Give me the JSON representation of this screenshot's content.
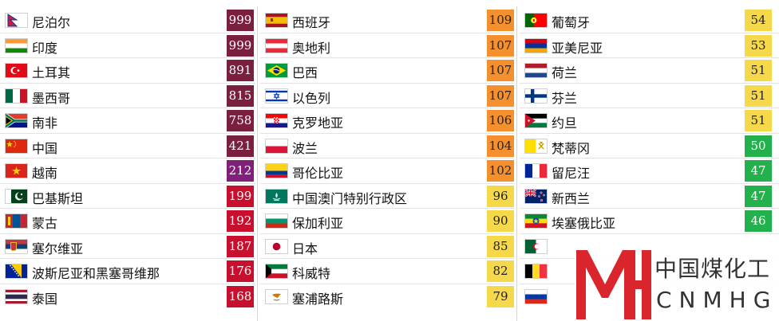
{
  "columns": [
    {
      "rows": [
        {
          "name": "尼泊尔",
          "value": "999",
          "tier": "t1",
          "flag": "nepal-flag-icon"
        },
        {
          "name": "印度",
          "value": "999",
          "tier": "t1",
          "flag": "india-flag-icon"
        },
        {
          "name": "土耳其",
          "value": "891",
          "tier": "t1",
          "flag": "turkey-flag-icon"
        },
        {
          "name": "墨西哥",
          "value": "815",
          "tier": "t1",
          "flag": "mexico-flag-icon"
        },
        {
          "name": "南非",
          "value": "758",
          "tier": "t1",
          "flag": "south-africa-flag-icon"
        },
        {
          "name": "中国",
          "value": "421",
          "tier": "t1",
          "flag": "china-flag-icon"
        },
        {
          "name": "越南",
          "value": "212",
          "tier": "t2",
          "flag": "vietnam-flag-icon"
        },
        {
          "name": "巴基斯坦",
          "value": "199",
          "tier": "t3",
          "flag": "pakistan-flag-icon"
        },
        {
          "name": "蒙古",
          "value": "192",
          "tier": "t3",
          "flag": "mongolia-flag-icon"
        },
        {
          "name": "塞尔维亚",
          "value": "187",
          "tier": "t3",
          "flag": "serbia-flag-icon"
        },
        {
          "name": "波斯尼亚和黑塞哥维那",
          "value": "176",
          "tier": "t3",
          "flag": "bosnia-flag-icon"
        },
        {
          "name": "泰国",
          "value": "168",
          "tier": "t3",
          "flag": "thailand-flag-icon"
        }
      ]
    },
    {
      "rows": [
        {
          "name": "西班牙",
          "value": "109",
          "tier": "t4",
          "flag": "spain-flag-icon"
        },
        {
          "name": "奥地利",
          "value": "107",
          "tier": "t4",
          "flag": "austria-flag-icon"
        },
        {
          "name": "巴西",
          "value": "107",
          "tier": "t4",
          "flag": "brazil-flag-icon"
        },
        {
          "name": "以色列",
          "value": "107",
          "tier": "t4",
          "flag": "israel-flag-icon"
        },
        {
          "name": "克罗地亚",
          "value": "106",
          "tier": "t4",
          "flag": "croatia-flag-icon"
        },
        {
          "name": "波兰",
          "value": "104",
          "tier": "t4",
          "flag": "poland-flag-icon"
        },
        {
          "name": "哥伦比亚",
          "value": "102",
          "tier": "t4",
          "flag": "colombia-flag-icon"
        },
        {
          "name": "中国澳门特别行政区",
          "value": "96",
          "tier": "t5",
          "flag": "macau-flag-icon"
        },
        {
          "name": "保加利亚",
          "value": "90",
          "tier": "t5",
          "flag": "bulgaria-flag-icon"
        },
        {
          "name": "日本",
          "value": "85",
          "tier": "t5",
          "flag": "japan-flag-icon"
        },
        {
          "name": "科威特",
          "value": "82",
          "tier": "t5",
          "flag": "kuwait-flag-icon"
        },
        {
          "name": "塞浦路斯",
          "value": "79",
          "tier": "t5",
          "flag": "cyprus-flag-icon"
        }
      ]
    },
    {
      "rows": [
        {
          "name": "葡萄牙",
          "value": "54",
          "tier": "t5",
          "flag": "portugal-flag-icon"
        },
        {
          "name": "亚美尼亚",
          "value": "53",
          "tier": "t5",
          "flag": "armenia-flag-icon"
        },
        {
          "name": "荷兰",
          "value": "51",
          "tier": "t5",
          "flag": "netherlands-flag-icon"
        },
        {
          "name": "芬兰",
          "value": "51",
          "tier": "t5",
          "flag": "finland-flag-icon"
        },
        {
          "name": "约旦",
          "value": "51",
          "tier": "t5",
          "flag": "jordan-flag-icon"
        },
        {
          "name": "梵蒂冈",
          "value": "50",
          "tier": "t6",
          "flag": "vatican-flag-icon"
        },
        {
          "name": "留尼汪",
          "value": "47",
          "tier": "t6",
          "flag": "reunion-flag-icon"
        },
        {
          "name": "新西兰",
          "value": "47",
          "tier": "t6",
          "flag": "new-zealand-flag-icon"
        },
        {
          "name": "埃塞俄比亚",
          "value": "46",
          "tier": "t6",
          "flag": "ethiopia-flag-icon"
        },
        {
          "name": "",
          "value": "",
          "tier": "t6",
          "flag": "algeria-flag-icon"
        },
        {
          "name": "",
          "value": "",
          "tier": "t6",
          "flag": "belgium-flag-icon"
        },
        {
          "name": "",
          "value": "",
          "tier": "t6",
          "flag": "russia-flag-icon"
        }
      ]
    }
  ],
  "tier_colors": {
    "t1": "#7a1f3d",
    "t2": "#80207a",
    "t3": "#c8102e",
    "t4": "#f4902d",
    "t5": "#f6d94a",
    "t6": "#22b14c"
  },
  "watermark": {
    "logo_mark": "MH",
    "cn": "中国煤化工",
    "en": "CNMHG"
  }
}
